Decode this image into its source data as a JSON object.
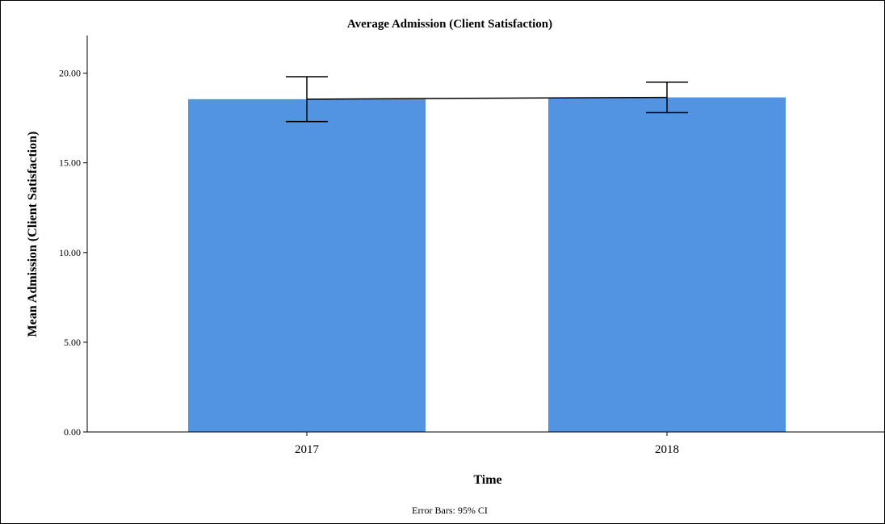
{
  "chart_data": {
    "type": "bar",
    "title": "Average Admission (Client Satisfaction)",
    "xlabel": "Time",
    "ylabel": "Mean Admission (Client Satisfaction)",
    "categories": [
      "2017",
      "2018"
    ],
    "values": [
      18.55,
      18.65
    ],
    "error_bars": {
      "lower": [
        17.3,
        17.8
      ],
      "upper": [
        19.8,
        19.5
      ]
    },
    "ylim": [
      0,
      22
    ],
    "yticks": [
      0,
      5,
      10,
      15,
      20
    ],
    "ytick_labels": [
      "0.00",
      "5.00",
      "10.00",
      "15.00",
      "20.00"
    ],
    "footnote": "Error Bars: 95% CI",
    "bar_color": "#5294e2",
    "grid": false,
    "legend": "none"
  }
}
